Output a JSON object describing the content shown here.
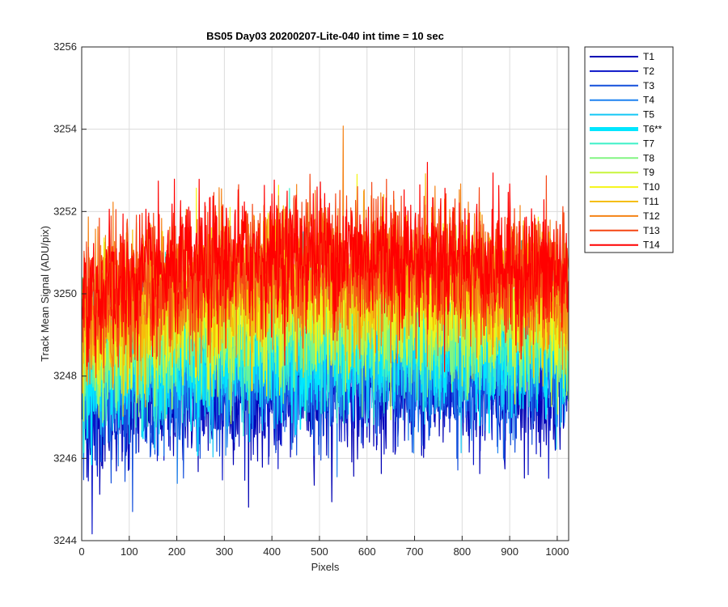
{
  "chart_data": {
    "type": "line",
    "title": "BS05 Day03 20200207-Lite-040 int time = 10 sec",
    "xlabel": "Pixels",
    "ylabel": "Track Mean Signal (ADU/pix)",
    "xlim": [
      0,
      1024
    ],
    "ylim": [
      3244,
      3256
    ],
    "xticks": [
      0,
      100,
      200,
      300,
      400,
      500,
      600,
      700,
      800,
      900,
      1000
    ],
    "yticks": [
      3244,
      3246,
      3248,
      3250,
      3252,
      3254,
      3256
    ],
    "grid": true,
    "legend_position": "outside-top-right",
    "n_points": 1024,
    "noise_amplitude": 1.25,
    "series": [
      {
        "name": "T1",
        "color": "#0000b4",
        "mean_start": 3247.2,
        "mean_mid": 3247.7,
        "mean_end": 3247.9
      },
      {
        "name": "T2",
        "color": "#0a14c8",
        "mean_start": 3247.4,
        "mean_mid": 3247.9,
        "mean_end": 3248.1
      },
      {
        "name": "T3",
        "color": "#1450dc",
        "mean_start": 3247.6,
        "mean_mid": 3248.1,
        "mean_end": 3248.3
      },
      {
        "name": "T4",
        "color": "#1e82f0",
        "mean_start": 3247.8,
        "mean_mid": 3248.3,
        "mean_end": 3248.5
      },
      {
        "name": "T5",
        "color": "#14c8f5",
        "mean_start": 3248.0,
        "mean_mid": 3248.6,
        "mean_end": 3248.7
      },
      {
        "name": "T6**",
        "color": "#00e6ff",
        "mean_start": 3248.2,
        "mean_mid": 3248.8,
        "mean_end": 3248.9,
        "highlighted": true
      },
      {
        "name": "T7",
        "color": "#3cf0c8",
        "mean_start": 3248.4,
        "mean_mid": 3249.1,
        "mean_end": 3249.1
      },
      {
        "name": "T8",
        "color": "#82f582",
        "mean_start": 3248.6,
        "mean_mid": 3249.4,
        "mean_end": 3249.3
      },
      {
        "name": "T9",
        "color": "#c8f53c",
        "mean_start": 3248.8,
        "mean_mid": 3249.7,
        "mean_end": 3249.5
      },
      {
        "name": "T10",
        "color": "#f5f514",
        "mean_start": 3249.0,
        "mean_mid": 3250.0,
        "mean_end": 3249.7
      },
      {
        "name": "T11",
        "color": "#f5be0a",
        "mean_start": 3249.2,
        "mean_mid": 3250.3,
        "mean_end": 3249.9
      },
      {
        "name": "T12",
        "color": "#f58214",
        "mean_start": 3249.4,
        "mean_mid": 3250.6,
        "mean_end": 3250.1
      },
      {
        "name": "T13",
        "color": "#f54614",
        "mean_start": 3249.7,
        "mean_mid": 3250.9,
        "mean_end": 3250.3
      },
      {
        "name": "T14",
        "color": "#ff0000",
        "mean_start": 3249.9,
        "mean_mid": 3251.0,
        "mean_end": 3250.4
      }
    ]
  }
}
